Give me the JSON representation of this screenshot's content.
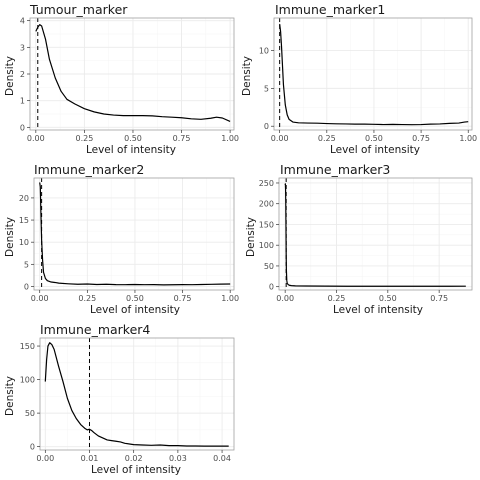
{
  "chart_data": [
    {
      "type": "line",
      "title": "Tumour_marker",
      "xlabel": "Level of intensity",
      "ylabel": "Density",
      "xlim": [
        -0.03,
        1.02
      ],
      "ylim": [
        -0.1,
        4.1
      ],
      "xticks": [
        0.0,
        0.25,
        0.5,
        0.75,
        1.0
      ],
      "xtick_labels": [
        "0.00",
        "0.25",
        "0.50",
        "0.75",
        "1.00"
      ],
      "yticks": [
        0,
        1,
        2,
        3,
        4
      ],
      "ytick_labels": [
        "0",
        "1",
        "2",
        "3",
        "4"
      ],
      "vline": 0.01,
      "grid": true,
      "x": [
        0,
        0.01,
        0.02,
        0.03,
        0.05,
        0.07,
        0.1,
        0.13,
        0.16,
        0.2,
        0.25,
        0.3,
        0.35,
        0.4,
        0.45,
        0.5,
        0.55,
        0.6,
        0.65,
        0.7,
        0.75,
        0.8,
        0.85,
        0.9,
        0.93,
        0.96,
        1.0
      ],
      "y": [
        3.6,
        3.75,
        3.85,
        3.8,
        3.3,
        2.55,
        1.85,
        1.35,
        1.05,
        0.88,
        0.7,
        0.58,
        0.5,
        0.46,
        0.44,
        0.44,
        0.44,
        0.43,
        0.4,
        0.38,
        0.36,
        0.32,
        0.3,
        0.34,
        0.38,
        0.35,
        0.22
      ]
    },
    {
      "type": "line",
      "title": "Immune_marker1",
      "xlabel": "Level of intensity",
      "ylabel": "Density",
      "xlim": [
        -0.03,
        1.02
      ],
      "ylim": [
        -0.5,
        14.3
      ],
      "xticks": [
        0.0,
        0.25,
        0.5,
        0.75,
        1.0
      ],
      "xtick_labels": [
        "0.00",
        "0.25",
        "0.50",
        "0.75",
        "1.00"
      ],
      "yticks": [
        0,
        5,
        10
      ],
      "ytick_labels": [
        "0",
        "5",
        "10"
      ],
      "vline": 0.0,
      "grid": true,
      "x": [
        0,
        0.005,
        0.01,
        0.015,
        0.02,
        0.03,
        0.04,
        0.05,
        0.07,
        0.1,
        0.15,
        0.2,
        0.25,
        0.3,
        0.35,
        0.4,
        0.45,
        0.5,
        0.55,
        0.6,
        0.65,
        0.7,
        0.75,
        0.8,
        0.85,
        0.9,
        0.95,
        0.98,
        1.0
      ],
      "y": [
        13.5,
        12.5,
        10.5,
        8.0,
        5.5,
        2.8,
        1.5,
        0.9,
        0.55,
        0.45,
        0.42,
        0.4,
        0.35,
        0.32,
        0.3,
        0.28,
        0.28,
        0.25,
        0.22,
        0.24,
        0.22,
        0.2,
        0.22,
        0.28,
        0.3,
        0.38,
        0.42,
        0.55,
        0.6
      ]
    },
    {
      "type": "line",
      "title": "Immune_marker2",
      "xlabel": "Level of intensity",
      "ylabel": "Density",
      "xlim": [
        -0.03,
        1.02
      ],
      "ylim": [
        -0.8,
        24.5
      ],
      "xticks": [
        0.0,
        0.25,
        0.5,
        0.75,
        1.0
      ],
      "xtick_labels": [
        "0.00",
        "0.25",
        "0.50",
        "0.75",
        "1.00"
      ],
      "yticks": [
        0,
        5,
        10,
        15,
        20
      ],
      "ytick_labels": [
        "0",
        "5",
        "10",
        "15",
        "20"
      ],
      "vline": 0.01,
      "grid": true,
      "x": [
        0,
        0.003,
        0.006,
        0.01,
        0.015,
        0.02,
        0.03,
        0.04,
        0.06,
        0.08,
        0.1,
        0.15,
        0.2,
        0.25,
        0.3,
        0.35,
        0.4,
        0.45,
        0.5,
        0.55,
        0.6,
        0.65,
        0.7,
        0.75,
        0.8,
        0.85,
        0.9,
        0.95,
        1.0
      ],
      "y": [
        23.5,
        22.5,
        17.0,
        10.5,
        6.0,
        3.2,
        1.8,
        1.3,
        1.0,
        0.9,
        0.75,
        0.6,
        0.5,
        0.55,
        0.45,
        0.5,
        0.42,
        0.4,
        0.45,
        0.4,
        0.42,
        0.35,
        0.38,
        0.42,
        0.4,
        0.45,
        0.48,
        0.52,
        0.55
      ]
    },
    {
      "type": "line",
      "title": "Immune_marker3",
      "xlabel": "Level of intensity",
      "ylabel": "Density",
      "xlim": [
        -0.03,
        0.91
      ],
      "ylim": [
        -8,
        262
      ],
      "xticks": [
        0.0,
        0.25,
        0.5,
        0.75
      ],
      "xtick_labels": [
        "0.00",
        "0.25",
        "0.50",
        "0.75"
      ],
      "yticks": [
        0,
        50,
        100,
        150,
        200,
        250
      ],
      "ytick_labels": [
        "0",
        "50",
        "100",
        "150",
        "200",
        "250"
      ],
      "vline": 0.005,
      "grid": true,
      "x": [
        0,
        0.001,
        0.002,
        0.003,
        0.004,
        0.005,
        0.006,
        0.008,
        0.01,
        0.015,
        0.02,
        0.03,
        0.05,
        0.1,
        0.2,
        0.3,
        0.4,
        0.5,
        0.6,
        0.7,
        0.8,
        0.88
      ],
      "y": [
        245,
        248,
        236,
        200,
        145,
        80,
        40,
        15,
        8,
        5,
        3.5,
        2.5,
        2,
        1.6,
        1.3,
        1.1,
        1,
        1,
        1,
        1,
        1.1,
        1.2
      ]
    },
    {
      "type": "line",
      "title": "Immune_marker4",
      "xlabel": "Level of intensity",
      "ylabel": "Density",
      "xlim": [
        -0.0012,
        0.0427
      ],
      "ylim": [
        -5,
        162
      ],
      "xticks": [
        0.0,
        0.01,
        0.02,
        0.03,
        0.04
      ],
      "xtick_labels": [
        "0.00",
        "0.01",
        "0.02",
        "0.03",
        "0.04"
      ],
      "yticks": [
        0,
        50,
        100,
        150
      ],
      "ytick_labels": [
        "0",
        "50",
        "100",
        "150"
      ],
      "vline": 0.01,
      "grid": true,
      "x": [
        0,
        0.0003,
        0.0006,
        0.001,
        0.0015,
        0.002,
        0.003,
        0.004,
        0.005,
        0.006,
        0.007,
        0.008,
        0.009,
        0.0095,
        0.01,
        0.0105,
        0.011,
        0.012,
        0.013,
        0.014,
        0.015,
        0.016,
        0.017,
        0.018,
        0.02,
        0.022,
        0.024,
        0.026,
        0.028,
        0.03,
        0.032,
        0.034,
        0.036,
        0.038,
        0.04,
        0.0415
      ],
      "y": [
        97,
        130,
        150,
        155,
        152,
        145,
        120,
        97,
        72,
        54,
        42,
        33,
        27,
        25,
        26,
        24,
        21,
        16,
        13,
        10,
        9,
        8,
        7,
        5,
        3,
        2.5,
        2,
        2.5,
        1.5,
        1.5,
        1,
        1,
        0.8,
        0.8,
        0.8,
        0.8
      ]
    }
  ]
}
